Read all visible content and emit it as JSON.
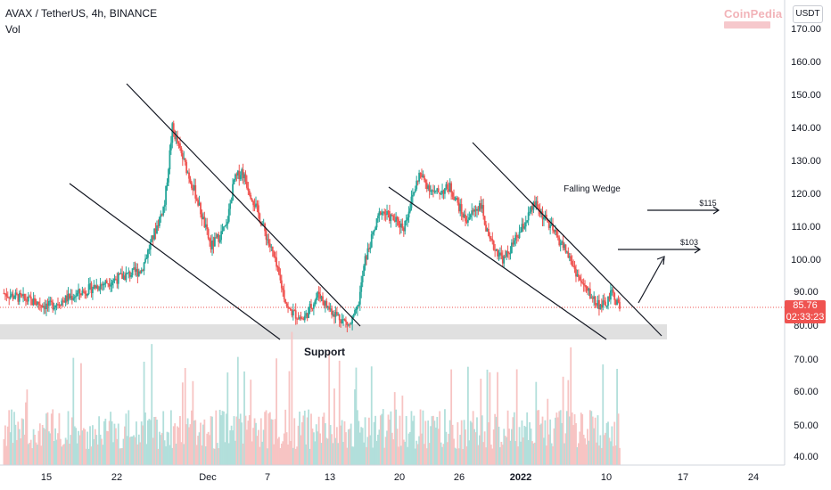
{
  "header": {
    "symbol": "AVAX / TetherUS, 4h, BINANCE",
    "indicator": "Vol"
  },
  "logo": {
    "brand": "CoinPedia",
    "brand_icon": "coinpedia-logo"
  },
  "currency": "USDT",
  "current_price": {
    "price": "85.76",
    "countdown": "02:33:23",
    "color": "#ef5350"
  },
  "colors": {
    "up": "#26a69a",
    "down": "#ef5350",
    "vol_up": "#b2dfdb",
    "vol_down": "#f7c4c3",
    "support_zone": "#e0e0e0"
  },
  "chart_data": {
    "type": "candlestick",
    "yticks": [
      "170.00",
      "160.00",
      "150.00",
      "140.00",
      "130.00",
      "120.00",
      "110.00",
      "100.00",
      "90.00",
      "80.00",
      "70.00",
      "60.00",
      "50.00",
      "40.00"
    ],
    "xticks": [
      "15",
      "22",
      "Dec",
      "7",
      "13",
      "20",
      "26",
      "2022",
      "10",
      "17",
      "24"
    ],
    "annotations": {
      "support": "Support",
      "falling_wedge": "Falling Wedge",
      "target1": "$103",
      "target2": "$115"
    },
    "price_keypoints": [
      [
        0,
        90
      ],
      [
        6,
        86
      ],
      [
        12,
        92
      ],
      [
        18,
        97
      ],
      [
        21,
        117
      ],
      [
        22,
        140
      ],
      [
        23,
        133
      ],
      [
        25,
        120
      ],
      [
        27,
        104
      ],
      [
        29,
        110
      ],
      [
        30,
        124
      ],
      [
        31,
        127
      ],
      [
        33,
        115
      ],
      [
        35,
        102
      ],
      [
        37,
        85
      ],
      [
        39,
        82
      ],
      [
        41,
        90
      ],
      [
        42,
        86
      ],
      [
        44,
        82
      ],
      [
        45,
        80
      ],
      [
        46,
        85
      ],
      [
        47,
        100
      ],
      [
        49,
        115
      ],
      [
        52,
        110
      ],
      [
        54,
        126
      ],
      [
        56,
        120
      ],
      [
        58,
        122
      ],
      [
        60,
        112
      ],
      [
        62,
        117
      ],
      [
        63,
        106
      ],
      [
        65,
        100
      ],
      [
        67,
        108
      ],
      [
        69,
        117
      ],
      [
        71,
        110
      ],
      [
        73,
        103
      ],
      [
        75,
        93
      ],
      [
        77,
        87
      ],
      [
        78,
        86
      ],
      [
        79,
        90
      ],
      [
        80,
        85.76
      ]
    ]
  }
}
